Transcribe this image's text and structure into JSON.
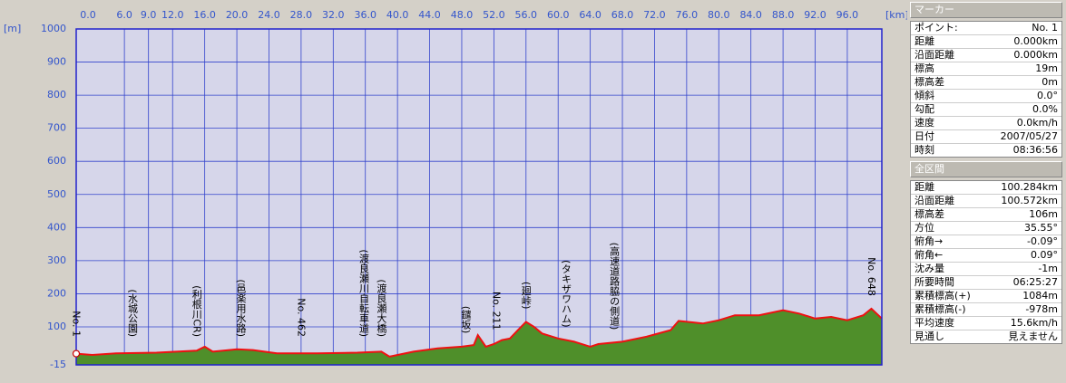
{
  "chart_data": {
    "type": "area",
    "x_label": "[km]",
    "y_label": "[m]",
    "xlim": [
      0,
      100.3
    ],
    "ylim": [
      -15,
      1000
    ],
    "xticks": [
      {
        "value": 0,
        "label": "0.0"
      },
      {
        "value": 6,
        "label": "6.0"
      },
      {
        "value": 9,
        "label": "9.0"
      },
      {
        "value": 12,
        "label": "12.0"
      },
      {
        "value": 16,
        "label": "16.0"
      },
      {
        "value": 20,
        "label": "20.0"
      },
      {
        "value": 24,
        "label": "24.0"
      },
      {
        "value": 28,
        "label": "28.0"
      },
      {
        "value": 32,
        "label": "32.0"
      },
      {
        "value": 36,
        "label": "36.0"
      },
      {
        "value": 40,
        "label": "40.0"
      },
      {
        "value": 44,
        "label": "44.0"
      },
      {
        "value": 48,
        "label": "48.0"
      },
      {
        "value": 52,
        "label": "52.0"
      },
      {
        "value": 56,
        "label": "56.0"
      },
      {
        "value": 60,
        "label": "60.0"
      },
      {
        "value": 64,
        "label": "64.0"
      },
      {
        "value": 68,
        "label": "68.0"
      },
      {
        "value": 72,
        "label": "72.0"
      },
      {
        "value": 76,
        "label": "76.0"
      },
      {
        "value": 80,
        "label": "80.0"
      },
      {
        "value": 84,
        "label": "84.0"
      },
      {
        "value": 88,
        "label": "88.0"
      },
      {
        "value": 92,
        "label": "92.0"
      },
      {
        "value": 96,
        "label": "96.0"
      }
    ],
    "yticks": [
      -15,
      100,
      200,
      300,
      400,
      500,
      600,
      700,
      800,
      900,
      1000
    ],
    "grid": true,
    "series": [
      {
        "color": "#ee1111",
        "fill": "#4f8f2a",
        "x": [
          0,
          2,
          5,
          10,
          15,
          16,
          17,
          20,
          22,
          25,
          30,
          35,
          38,
          39,
          42,
          45,
          48,
          49.5,
          50,
          51,
          52,
          53,
          54,
          55,
          56,
          57,
          58,
          60,
          62,
          64,
          65,
          68,
          71,
          74,
          75,
          78,
          80,
          82,
          85,
          88,
          90,
          92,
          94,
          96,
          98,
          99,
          100.3
        ],
        "values": [
          19,
          15,
          20,
          22,
          28,
          40,
          25,
          32,
          30,
          20,
          20,
          22,
          25,
          10,
          25,
          35,
          40,
          45,
          75,
          40,
          48,
          60,
          65,
          90,
          115,
          100,
          80,
          65,
          55,
          40,
          48,
          55,
          70,
          90,
          118,
          110,
          120,
          135,
          135,
          150,
          140,
          125,
          130,
          120,
          135,
          155,
          125
        ]
      }
    ],
    "annotations": [
      {
        "text": "No. 1",
        "x": 0
      },
      {
        "text": "(水城公園)",
        "x": 7
      },
      {
        "text": "(利根川CR)",
        "x": 15
      },
      {
        "text": "(邑楽用水路)",
        "x": 20.5
      },
      {
        "text": "No. 462",
        "x": 28
      },
      {
        "text": "(渡良瀬川自転車道)",
        "x": 35.8
      },
      {
        "text": "(渡良瀬大橋)",
        "x": 38
      },
      {
        "text": "(鑓坂)",
        "x": 48.5
      },
      {
        "text": "No. 211",
        "x": 52.3
      },
      {
        "text": "(廻峠)",
        "x": 56
      },
      {
        "text": "(タキザワハム)",
        "x": 61
      },
      {
        "text": "(高速道路脇の側道)",
        "x": 67
      },
      {
        "text": "No. 648",
        "x": 99
      }
    ]
  },
  "panels": [
    {
      "title": "マーカー",
      "rows": [
        [
          "ポイント:",
          "No. 1"
        ],
        [
          "距離",
          "0.000km"
        ],
        [
          "沿面距離",
          "0.000km"
        ],
        [
          "標高",
          "19m"
        ],
        [
          "標高差",
          "0m"
        ],
        [
          "傾斜",
          "0.0°"
        ],
        [
          "勾配",
          "0.0%"
        ],
        [
          "速度",
          "0.0km/h"
        ],
        [
          "日付",
          "2007/05/27"
        ],
        [
          "時刻",
          "08:36:56"
        ]
      ]
    },
    {
      "title": "全区間",
      "rows": [
        [
          "距離",
          "100.284km"
        ],
        [
          "沿面距離",
          "100.572km"
        ],
        [
          "標高差",
          "106m"
        ],
        [
          "方位",
          "35.55°"
        ],
        [
          "俯角→",
          "-0.09°"
        ],
        [
          "俯角←",
          "0.09°"
        ],
        [
          "沈み量",
          "-1m"
        ],
        [
          "所要時間",
          "06:25:27"
        ],
        [
          "累積標高(+)",
          "1084m"
        ],
        [
          "累積標高(-)",
          "-978m"
        ],
        [
          "平均速度",
          "15.6km/h"
        ],
        [
          "見通し",
          "見えません"
        ]
      ]
    }
  ]
}
